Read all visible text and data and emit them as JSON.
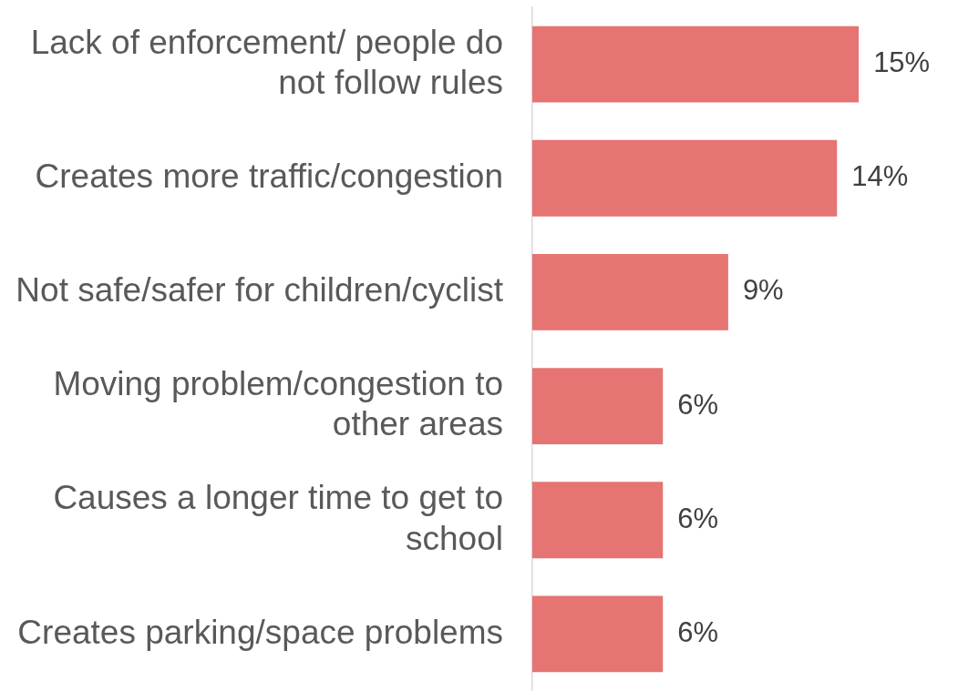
{
  "chart_data": {
    "type": "bar",
    "orientation": "horizontal",
    "categories": [
      "Lack of enforcement/ people do not follow rules",
      "Creates more traffic/congestion",
      "Not safe/safer for children/cyclist",
      "Moving problem/congestion to other areas",
      "Causes a longer time to get to school",
      "Creates parking/space problems"
    ],
    "values": [
      15,
      14,
      9,
      6,
      6,
      6
    ],
    "value_labels": [
      "15%",
      "14%",
      "9%",
      "6%",
      "6%",
      "6%"
    ],
    "color": "#e57472",
    "tick_labels": "y",
    "legend": false
  }
}
